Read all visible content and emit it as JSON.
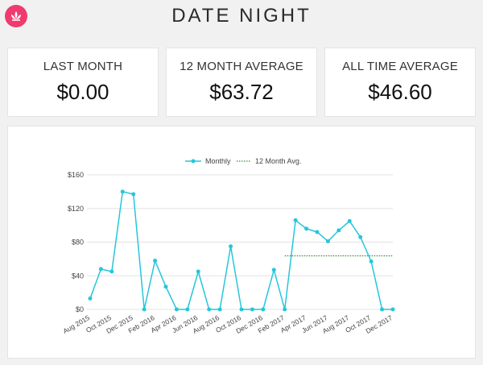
{
  "header": {
    "title": "DATE NIGHT",
    "logo_icon": "lotus-icon"
  },
  "stats": [
    {
      "label": "LAST MONTH",
      "value": "$0.00"
    },
    {
      "label": "12 MONTH AVERAGE",
      "value": "$63.72"
    },
    {
      "label": "ALL TIME AVERAGE",
      "value": "$46.60"
    }
  ],
  "colors": {
    "accent": "#ef3b6e",
    "monthly_line": "#26c6da",
    "avg_line": "#3a8a3a"
  },
  "chart_data": {
    "type": "line",
    "legend": [
      "Monthly",
      "12 Month Avg."
    ],
    "legend_position": "top-center",
    "x": [
      "Aug 2015",
      "Sep 2015",
      "Oct 2015",
      "Nov 2015",
      "Dec 2015",
      "Jan 2016",
      "Feb 2016",
      "Mar 2016",
      "Apr 2016",
      "May 2016",
      "Jun 2016",
      "Jul 2016",
      "Aug 2016",
      "Sep 2016",
      "Oct 2016",
      "Nov 2016",
      "Dec 2016",
      "Jan 2017",
      "Feb 2017",
      "Mar 2017",
      "Apr 2017",
      "May 2017",
      "Jun 2017",
      "Jul 2017",
      "Aug 2017",
      "Sep 2017",
      "Oct 2017",
      "Nov 2017",
      "Dec 2017"
    ],
    "x_tick_labels": [
      "Aug 2015",
      "Oct 2015",
      "Dec 2015",
      "Feb 2016",
      "Apr 2016",
      "Jun 2016",
      "Aug 2016",
      "Oct 2016",
      "Dec 2016",
      "Feb 2017",
      "Apr 2017",
      "Jun 2017",
      "Aug 2017",
      "Oct 2017",
      "Dec 2017"
    ],
    "series": [
      {
        "name": "Monthly",
        "values": [
          13,
          48,
          45,
          140,
          137,
          0,
          58,
          27,
          0,
          0,
          45,
          0,
          0,
          75,
          0,
          0,
          0,
          47,
          0,
          106,
          96,
          92,
          81,
          94,
          105,
          86,
          57,
          0,
          0
        ]
      },
      {
        "name": "12 Month Avg.",
        "values": [
          null,
          null,
          null,
          null,
          null,
          null,
          null,
          null,
          null,
          null,
          null,
          null,
          null,
          null,
          null,
          null,
          null,
          null,
          63.72,
          63.72,
          63.72,
          63.72,
          63.72,
          63.72,
          63.72,
          63.72,
          63.72,
          63.72,
          63.72
        ]
      }
    ],
    "y_ticks": [
      "$0",
      "$40",
      "$80",
      "$120",
      "$160"
    ],
    "y_tick_values": [
      0,
      40,
      80,
      120,
      160
    ],
    "ylim": [
      0,
      160
    ],
    "grid": true
  }
}
